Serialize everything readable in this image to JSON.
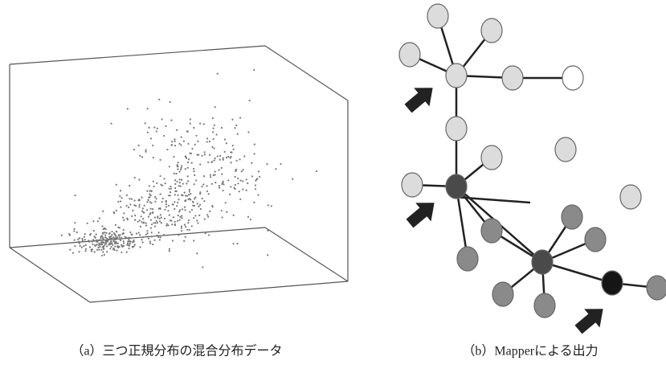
{
  "panels": [
    {
      "caption": "（a）三つ正規分布の混合分布データ"
    },
    {
      "caption": "（b）Mapperによる出力"
    }
  ]
}
